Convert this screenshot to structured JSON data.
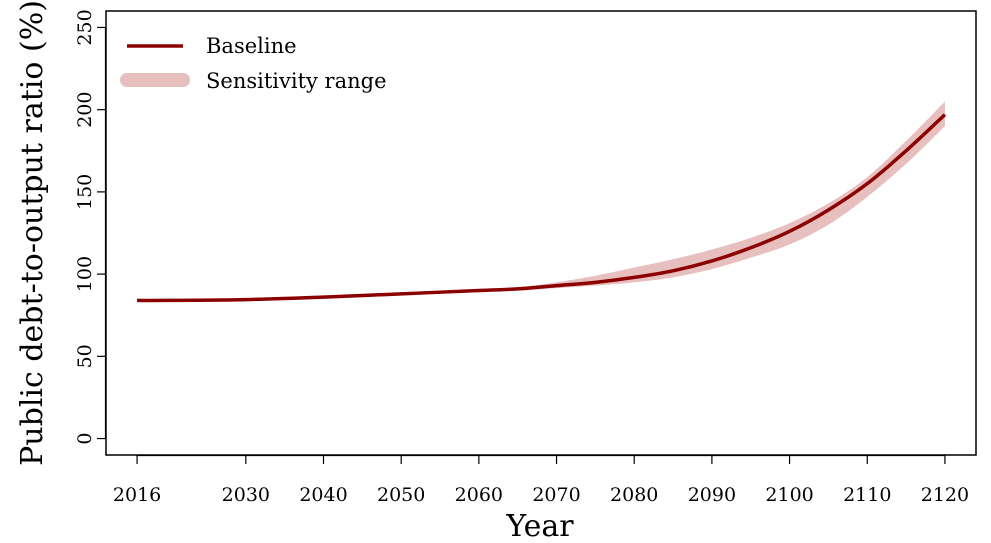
{
  "chart_data": {
    "type": "line",
    "title": "",
    "xlabel": "Year",
    "ylabel": "Public debt-to-output ratio (%)",
    "xlim": [
      2012,
      2124
    ],
    "ylim": [
      -10,
      260
    ],
    "xticks": [
      2016,
      2030,
      2040,
      2050,
      2060,
      2070,
      2080,
      2090,
      2100,
      2110,
      2120
    ],
    "yticks": [
      0,
      50,
      100,
      150,
      200,
      250
    ],
    "grid": false,
    "legend": {
      "position": "top-left",
      "entries": [
        "Baseline",
        "Sensitivity range"
      ]
    },
    "colors": {
      "baseline": "#8b0000",
      "band": "#e8bfbf"
    },
    "series": [
      {
        "name": "Baseline",
        "kind": "line",
        "x": [
          2016,
          2020,
          2030,
          2040,
          2050,
          2060,
          2065,
          2070,
          2075,
          2080,
          2085,
          2090,
          2095,
          2100,
          2105,
          2110,
          2115,
          2120
        ],
        "y": [
          84,
          84,
          84.5,
          86,
          88,
          90,
          91,
          93,
          95,
          98,
          102,
          108,
          116,
          126,
          139,
          155,
          175,
          197
        ]
      },
      {
        "name": "Sensitivity range",
        "kind": "band",
        "x": [
          2016,
          2030,
          2050,
          2060,
          2065,
          2070,
          2075,
          2080,
          2085,
          2090,
          2095,
          2100,
          2105,
          2110,
          2115,
          2120
        ],
        "lower": [
          84,
          84.5,
          88,
          89.5,
          90,
          91.5,
          93,
          95,
          98,
          103,
          110,
          118,
          130,
          147,
          167,
          190
        ],
        "upper": [
          84,
          84.5,
          88,
          90.5,
          92,
          95,
          99,
          104,
          109,
          115,
          122,
          131,
          143,
          159,
          181,
          205
        ]
      }
    ]
  }
}
